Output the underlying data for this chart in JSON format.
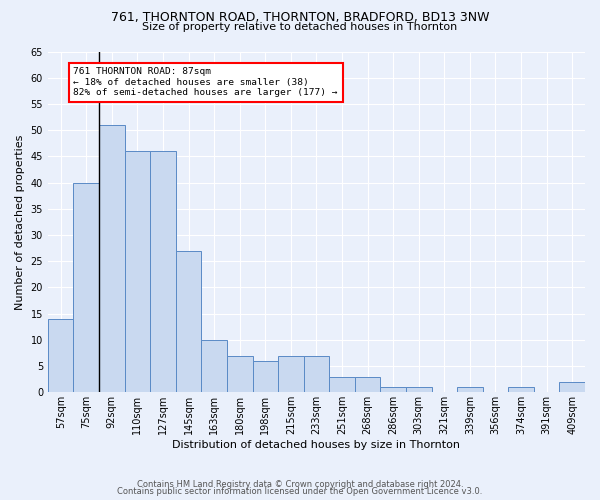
{
  "title1": "761, THORNTON ROAD, THORNTON, BRADFORD, BD13 3NW",
  "title2": "Size of property relative to detached houses in Thornton",
  "xlabel": "Distribution of detached houses by size in Thornton",
  "ylabel": "Number of detached properties",
  "categories": [
    "57sqm",
    "75sqm",
    "92sqm",
    "110sqm",
    "127sqm",
    "145sqm",
    "163sqm",
    "180sqm",
    "198sqm",
    "215sqm",
    "233sqm",
    "251sqm",
    "268sqm",
    "286sqm",
    "303sqm",
    "321sqm",
    "339sqm",
    "356sqm",
    "374sqm",
    "391sqm",
    "409sqm"
  ],
  "values": [
    14,
    40,
    51,
    46,
    46,
    27,
    10,
    7,
    6,
    7,
    7,
    3,
    3,
    1,
    1,
    0,
    1,
    0,
    1,
    0,
    2
  ],
  "bar_color": "#c9d9f0",
  "bar_edge_color": "#5a8ac6",
  "annotation_text": "761 THORNTON ROAD: 87sqm\n← 18% of detached houses are smaller (38)\n82% of semi-detached houses are larger (177) →",
  "annotation_box_color": "white",
  "annotation_box_edge_color": "red",
  "subject_line_color": "black",
  "ylim": [
    0,
    65
  ],
  "yticks": [
    0,
    5,
    10,
    15,
    20,
    25,
    30,
    35,
    40,
    45,
    50,
    55,
    60,
    65
  ],
  "footer1": "Contains HM Land Registry data © Crown copyright and database right 2024.",
  "footer2": "Contains public sector information licensed under the Open Government Licence v3.0.",
  "bg_color": "#eaf0fb",
  "plot_bg_color": "#eaf0fb",
  "title1_fontsize": 9,
  "title2_fontsize": 8,
  "ylabel_fontsize": 8,
  "xlabel_fontsize": 8,
  "tick_fontsize": 7,
  "footer_fontsize": 6
}
